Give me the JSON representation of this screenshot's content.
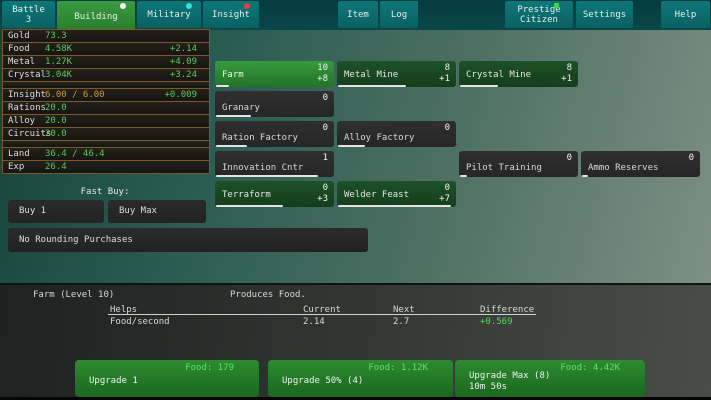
{
  "topbar": {
    "battle": {
      "label": "Battle",
      "badge": "3"
    },
    "building": {
      "label": "Building"
    },
    "military": {
      "label": "Military"
    },
    "insight": {
      "label": "Insight"
    },
    "item": {
      "label": "Item"
    },
    "log": {
      "label": "Log"
    },
    "prestige": {
      "label": "Prestige",
      "sub": "Citizen"
    },
    "settings": {
      "label": "Settings"
    },
    "help": {
      "label": "Help"
    }
  },
  "resources": {
    "rows": [
      {
        "name": "Gold",
        "value": "73.3",
        "delta": ""
      },
      {
        "name": "Food",
        "value": "4.58K",
        "delta": "+2.14"
      },
      {
        "name": "Metal",
        "value": "1.27K",
        "delta": "+4.09"
      },
      {
        "name": "Crystal",
        "value": "3.04K",
        "delta": "+3.24"
      },
      {
        "name": "Insight",
        "value": "6.00 / 6.00",
        "delta": "+0.009"
      },
      {
        "name": "Rations",
        "value": "20.0",
        "delta": ""
      },
      {
        "name": "Alloy",
        "value": "20.0",
        "delta": ""
      },
      {
        "name": "Circuits",
        "value": "20.0",
        "delta": ""
      },
      {
        "name": "Land",
        "value": "36.4 / 46.4",
        "delta": ""
      },
      {
        "name": "Exp",
        "value": "26.4",
        "delta": ""
      }
    ]
  },
  "fastbuy": {
    "title": "Fast Buy:",
    "buy1": "Buy 1",
    "buymax": "Buy Max",
    "rounding": "No Rounding Purchases"
  },
  "buildings": {
    "farm": {
      "label": "Farm",
      "count": "10",
      "gain": "+8",
      "progress": "11%"
    },
    "metal_mine": {
      "label": "Metal Mine",
      "count": "8",
      "gain": "+1",
      "progress": "57%"
    },
    "crystal_mine": {
      "label": "Crystal Mine",
      "count": "8",
      "gain": "+1",
      "progress": "32%"
    },
    "granary": {
      "label": "Granary",
      "count": "0",
      "progress": "29%"
    },
    "ration_factory": {
      "label": "Ration Factory",
      "count": "0",
      "progress": "26%"
    },
    "alloy_factory": {
      "label": "Alloy Factory",
      "count": "0",
      "progress": "23%"
    },
    "innovation_cntr": {
      "label": "Innovation Cntr",
      "count": "1",
      "progress": "86%"
    },
    "pilot_training": {
      "label": "Pilot Training",
      "count": "0",
      "progress": "6%"
    },
    "ammo_reserves": {
      "label": "Ammo Reserves",
      "count": "0",
      "progress": "5%"
    },
    "terraform": {
      "label": "Terraform",
      "count": "0",
      "gain": "+3",
      "progress": "56%"
    },
    "welder_feast": {
      "label": "Welder Feast",
      "count": "0",
      "gain": "+7",
      "progress": "95%"
    }
  },
  "detail": {
    "title": "Farm (Level 10)",
    "description": "Produces Food.",
    "table": {
      "headers": [
        "Helps",
        "Current",
        "Next",
        "Difference"
      ],
      "row": {
        "name": "Food/second",
        "current": "2.14",
        "next": "2.7",
        "difference": "+0.569"
      }
    }
  },
  "upgrades": {
    "one": {
      "cost": "Food: 179",
      "label": "Upgrade 1"
    },
    "fifty": {
      "cost": "Food: 1.12K",
      "label": "Upgrade 50% (4)"
    },
    "max": {
      "cost": "Food: 4.42K",
      "label": "Upgrade Max (8)",
      "time": "10m 50s"
    }
  },
  "colors": {
    "accent_green": "#55cb55",
    "accent_orange": "#cf9a3f",
    "tab_teal": "#0d7173",
    "active_tab_green": "#2f8c35",
    "indicator_white": "#ffffff",
    "indicator_cyan": "#35e0e0",
    "indicator_red": "#e04040",
    "indicator_square_green": "#4ad04a"
  }
}
